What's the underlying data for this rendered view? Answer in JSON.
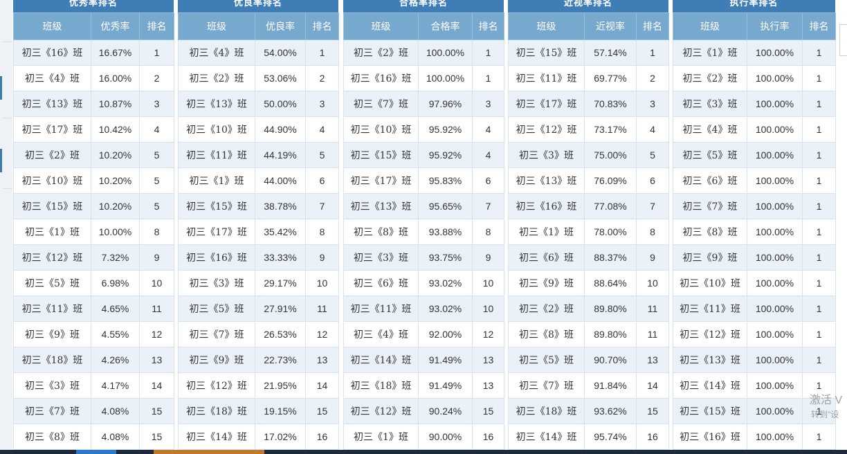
{
  "panels": [
    {
      "title": "优秀率排名",
      "headers": [
        "班级",
        "优秀率",
        "排名"
      ],
      "rows": [
        [
          "初三《16》班",
          "16.67%",
          "1"
        ],
        [
          "初三《4》班",
          "16.00%",
          "2"
        ],
        [
          "初三《13》班",
          "10.87%",
          "3"
        ],
        [
          "初三《17》班",
          "10.42%",
          "4"
        ],
        [
          "初三《2》班",
          "10.20%",
          "5"
        ],
        [
          "初三《10》班",
          "10.20%",
          "5"
        ],
        [
          "初三《15》班",
          "10.20%",
          "5"
        ],
        [
          "初三《1》班",
          "10.00%",
          "8"
        ],
        [
          "初三《12》班",
          "7.32%",
          "9"
        ],
        [
          "初三《5》班",
          "6.98%",
          "10"
        ],
        [
          "初三《11》班",
          "4.65%",
          "11"
        ],
        [
          "初三《9》班",
          "4.55%",
          "12"
        ],
        [
          "初三《18》班",
          "4.26%",
          "13"
        ],
        [
          "初三《3》班",
          "4.17%",
          "14"
        ],
        [
          "初三《7》班",
          "4.08%",
          "15"
        ],
        [
          "初三《8》班",
          "4.08%",
          "15"
        ]
      ]
    },
    {
      "title": "优良率排名",
      "headers": [
        "班级",
        "优良率",
        "排名"
      ],
      "rows": [
        [
          "初三《4》班",
          "54.00%",
          "1"
        ],
        [
          "初三《2》班",
          "53.06%",
          "2"
        ],
        [
          "初三《13》班",
          "50.00%",
          "3"
        ],
        [
          "初三《10》班",
          "44.90%",
          "4"
        ],
        [
          "初三《11》班",
          "44.19%",
          "5"
        ],
        [
          "初三《1》班",
          "44.00%",
          "6"
        ],
        [
          "初三《15》班",
          "38.78%",
          "7"
        ],
        [
          "初三《17》班",
          "35.42%",
          "8"
        ],
        [
          "初三《16》班",
          "33.33%",
          "9"
        ],
        [
          "初三《3》班",
          "29.17%",
          "10"
        ],
        [
          "初三《5》班",
          "27.91%",
          "11"
        ],
        [
          "初三《7》班",
          "26.53%",
          "12"
        ],
        [
          "初三《9》班",
          "22.73%",
          "13"
        ],
        [
          "初三《12》班",
          "21.95%",
          "14"
        ],
        [
          "初三《18》班",
          "19.15%",
          "15"
        ],
        [
          "初三《14》班",
          "17.02%",
          "16"
        ]
      ]
    },
    {
      "title": "合格率排名",
      "headers": [
        "班级",
        "合格率",
        "排名"
      ],
      "rows": [
        [
          "初三《2》班",
          "100.00%",
          "1"
        ],
        [
          "初三《16》班",
          "100.00%",
          "1"
        ],
        [
          "初三《7》班",
          "97.96%",
          "3"
        ],
        [
          "初三《10》班",
          "95.92%",
          "4"
        ],
        [
          "初三《15》班",
          "95.92%",
          "4"
        ],
        [
          "初三《17》班",
          "95.83%",
          "6"
        ],
        [
          "初三《13》班",
          "95.65%",
          "7"
        ],
        [
          "初三《8》班",
          "93.88%",
          "8"
        ],
        [
          "初三《3》班",
          "93.75%",
          "9"
        ],
        [
          "初三《6》班",
          "93.02%",
          "10"
        ],
        [
          "初三《11》班",
          "93.02%",
          "10"
        ],
        [
          "初三《4》班",
          "92.00%",
          "12"
        ],
        [
          "初三《14》班",
          "91.49%",
          "13"
        ],
        [
          "初三《18》班",
          "91.49%",
          "13"
        ],
        [
          "初三《12》班",
          "90.24%",
          "15"
        ],
        [
          "初三《1》班",
          "90.00%",
          "16"
        ]
      ]
    },
    {
      "title": "近视率排名",
      "headers": [
        "班级",
        "近视率",
        "排名"
      ],
      "rows": [
        [
          "初三《15》班",
          "57.14%",
          "1"
        ],
        [
          "初三《11》班",
          "69.77%",
          "2"
        ],
        [
          "初三《17》班",
          "70.83%",
          "3"
        ],
        [
          "初三《12》班",
          "73.17%",
          "4"
        ],
        [
          "初三《3》班",
          "75.00%",
          "5"
        ],
        [
          "初三《13》班",
          "76.09%",
          "6"
        ],
        [
          "初三《16》班",
          "77.08%",
          "7"
        ],
        [
          "初三《1》班",
          "78.00%",
          "8"
        ],
        [
          "初三《6》班",
          "88.37%",
          "9"
        ],
        [
          "初三《9》班",
          "88.64%",
          "10"
        ],
        [
          "初三《2》班",
          "89.80%",
          "11"
        ],
        [
          "初三《8》班",
          "89.80%",
          "11"
        ],
        [
          "初三《5》班",
          "90.70%",
          "13"
        ],
        [
          "初三《7》班",
          "91.84%",
          "14"
        ],
        [
          "初三《18》班",
          "93.62%",
          "15"
        ],
        [
          "初三《14》班",
          "95.74%",
          "16"
        ]
      ]
    },
    {
      "title": "执行率排名",
      "headers": [
        "班级",
        "执行率",
        "排名"
      ],
      "rows": [
        [
          "初三《1》班",
          "100.00%",
          "1"
        ],
        [
          "初三《2》班",
          "100.00%",
          "1"
        ],
        [
          "初三《3》班",
          "100.00%",
          "1"
        ],
        [
          "初三《4》班",
          "100.00%",
          "1"
        ],
        [
          "初三《5》班",
          "100.00%",
          "1"
        ],
        [
          "初三《6》班",
          "100.00%",
          "1"
        ],
        [
          "初三《7》班",
          "100.00%",
          "1"
        ],
        [
          "初三《8》班",
          "100.00%",
          "1"
        ],
        [
          "初三《9》班",
          "100.00%",
          "1"
        ],
        [
          "初三《10》班",
          "100.00%",
          "1"
        ],
        [
          "初三《11》班",
          "100.00%",
          "1"
        ],
        [
          "初三《12》班",
          "100.00%",
          "1"
        ],
        [
          "初三《13》班",
          "100.00%",
          "1"
        ],
        [
          "初三《14》班",
          "100.00%",
          "1"
        ],
        [
          "初三《15》班",
          "100.00%",
          "1"
        ],
        [
          "初三《16》班",
          "100.00%",
          "1"
        ]
      ]
    }
  ],
  "watermark": {
    "line1": "激活 V",
    "line2": "转到\"设"
  },
  "colors": {
    "panel_title_bg": "#3f7db6",
    "header_bg": "#77a8cd",
    "row_alt_bg": "#eaf1f8"
  }
}
